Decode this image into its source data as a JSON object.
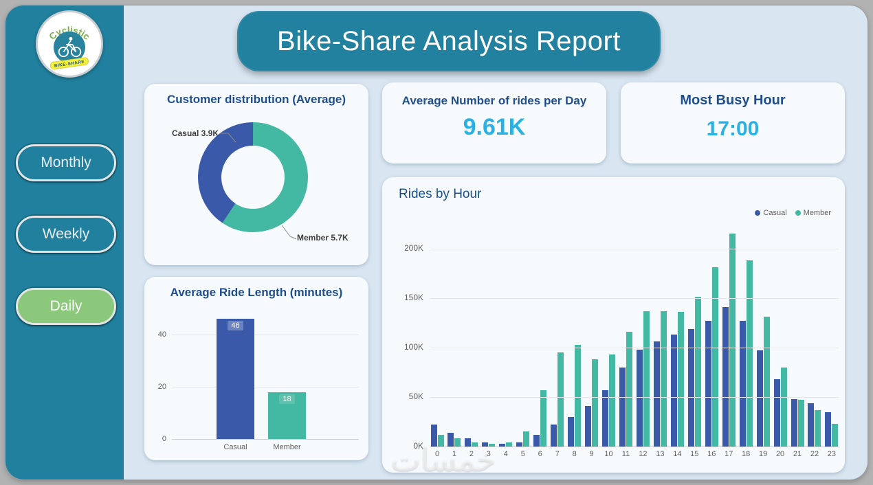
{
  "colors": {
    "outer_background": "#b2b2b2",
    "dashboard_background": "#d9e6f2",
    "sidebar": "#20809e",
    "banner": "#21819f",
    "card": "#f7fafc",
    "title_navy": "#1f4e8f",
    "kpi_cyan": "#29b1e4",
    "casual_blue": "#3a5aa9",
    "member_green": "#43b9a4",
    "daily_active_green": "#8cc87c"
  },
  "sidebar": {
    "logo": {
      "brand_top": "Cyclistic",
      "brand_bottom": "BIKE-SHARE"
    },
    "buttons": [
      {
        "label": "Monthly",
        "active": false
      },
      {
        "label": "Weekly",
        "active": false
      },
      {
        "label": "Daily",
        "active": true
      }
    ]
  },
  "header": {
    "title": "Bike-Share Analysis Report"
  },
  "cards": {
    "donut": {
      "title": "Customer distribution (Average)",
      "labels": [
        "Casual 3.9K",
        "Member 5.7K"
      ]
    },
    "avg_rides": {
      "title": "Average Number of rides per Day",
      "value": "9.61K"
    },
    "busy_hour": {
      "title": "Most Busy Hour",
      "value": "17:00"
    },
    "rides_by_hour": {
      "title": "Rides by Hour",
      "legend": [
        "Casual",
        "Member"
      ]
    },
    "ride_length": {
      "title": "Average Ride Length (minutes)"
    }
  },
  "watermark": {
    "text": "خمسات"
  },
  "chart_data": [
    {
      "type": "pie",
      "title": "Customer distribution (Average)",
      "labels": [
        "Casual",
        "Member"
      ],
      "values": [
        3900,
        5700
      ],
      "display_values": [
        "3.9K",
        "5.7K"
      ],
      "display_labels": [
        "Casual 3.9K",
        "Member 5.7K"
      ],
      "colors": [
        "#3a5aa9",
        "#43b9a4"
      ],
      "donut": true
    },
    {
      "type": "bar",
      "title": "Average Ride Length (minutes)",
      "categories": [
        "Casual",
        "Member"
      ],
      "values": [
        46,
        18
      ],
      "yticks": [
        0,
        20,
        40
      ],
      "ylim": [
        0,
        50
      ],
      "colors": [
        "#3a5aa9",
        "#43b9a4"
      ]
    },
    {
      "type": "bar",
      "title": "Rides by Hour",
      "unit": "K",
      "categories": [
        "0",
        "1",
        "2",
        "3",
        "4",
        "5",
        "6",
        "7",
        "8",
        "9",
        "10",
        "11",
        "12",
        "13",
        "14",
        "15",
        "16",
        "17",
        "18",
        "19",
        "20",
        "21",
        "22",
        "23"
      ],
      "series": [
        {
          "name": "Casual",
          "color": "#3a5aa9",
          "values": [
            22,
            14,
            8,
            4,
            3,
            4,
            12,
            22,
            30,
            41,
            57,
            80,
            98,
            106,
            113,
            119,
            127,
            141,
            127,
            97,
            68,
            48,
            44,
            35
          ]
        },
        {
          "name": "Member",
          "color": "#43b9a4",
          "values": [
            12,
            8,
            4,
            3,
            4,
            15,
            57,
            95,
            103,
            88,
            93,
            116,
            137,
            137,
            136,
            151,
            181,
            215,
            188,
            131,
            80,
            47,
            37,
            23
          ]
        }
      ],
      "yticks_k": [
        0,
        50,
        100,
        150,
        200
      ],
      "ytick_labels": [
        "0K",
        "50K",
        "100K",
        "150K",
        "200K"
      ],
      "ylim_k": [
        0,
        236
      ],
      "legend_position": "top-right",
      "grid": true
    }
  ]
}
